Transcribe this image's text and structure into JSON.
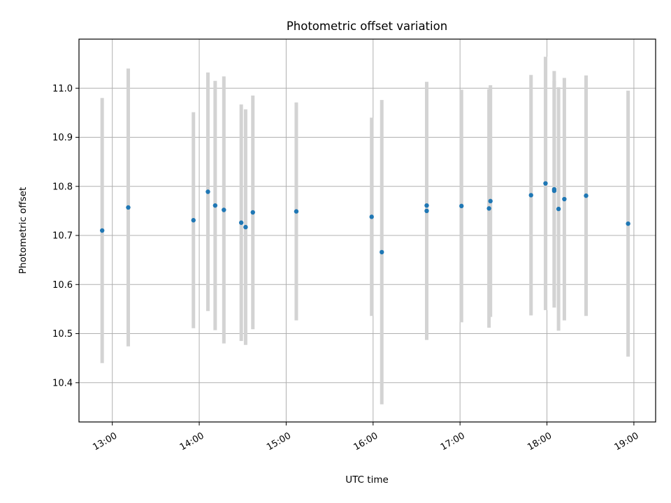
{
  "chart_data": {
    "type": "scatter",
    "title": "Photometric offset variation",
    "xlabel": "UTC time",
    "ylabel": "Photometric offset",
    "xlim": [
      "12:37",
      "19:15"
    ],
    "ylim": [
      10.32,
      11.1
    ],
    "grid": true,
    "x_ticks": [
      "13:00",
      "14:00",
      "15:00",
      "16:00",
      "17:00",
      "18:00",
      "19:00"
    ],
    "y_ticks": [
      "10.4",
      "10.5",
      "10.6",
      "10.7",
      "10.8",
      "10.9",
      "11.0"
    ],
    "errorbar_color": "#d3d3d3",
    "point_color": "#1f77b4",
    "series": [
      {
        "x": [
          "12:53",
          "13:11",
          "13:56",
          "14:06",
          "14:11",
          "14:17",
          "14:29",
          "14:32",
          "14:37",
          "15:07",
          "15:59",
          "16:06",
          "16:37",
          "16:37",
          "17:01",
          "17:20",
          "17:21",
          "17:49",
          "17:59",
          "18:05",
          "18:05",
          "18:08",
          "18:12",
          "18:27",
          "18:56"
        ],
        "y": [
          10.71,
          10.757,
          10.731,
          10.789,
          10.761,
          10.752,
          10.726,
          10.717,
          10.747,
          10.749,
          10.738,
          10.666,
          10.761,
          10.75,
          10.76,
          10.755,
          10.77,
          10.782,
          10.806,
          10.791,
          10.794,
          10.754,
          10.774,
          10.781,
          10.724
        ],
        "err": [
          0.27,
          0.283,
          0.22,
          0.243,
          0.254,
          0.272,
          0.241,
          0.24,
          0.238,
          0.222,
          0.202,
          0.31,
          0.247,
          0.263,
          0.237,
          0.243,
          0.236,
          0.245,
          0.258,
          0.224,
          0.241,
          0.248,
          0.247,
          0.245,
          0.271
        ]
      }
    ]
  }
}
